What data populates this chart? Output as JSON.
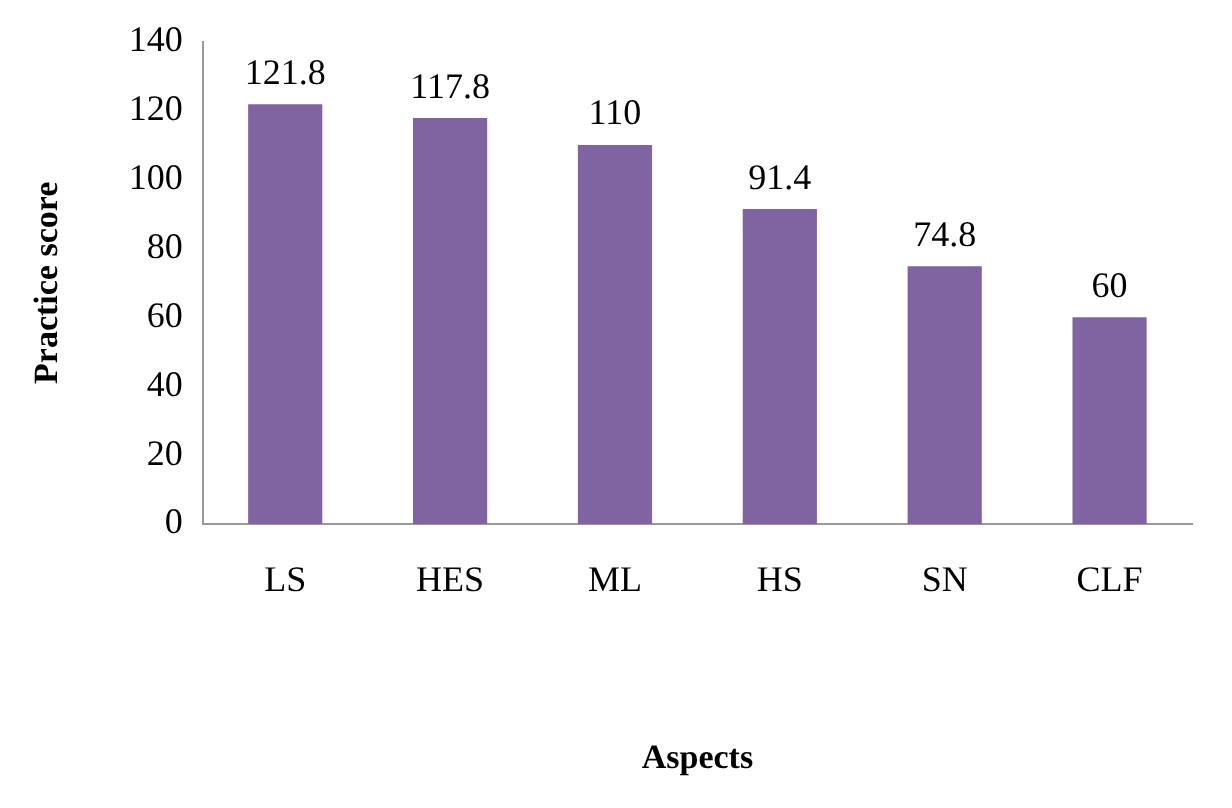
{
  "chart_data": {
    "type": "bar",
    "xlabel": "Aspects",
    "ylabel": "Practice score",
    "categories": [
      "LS",
      "HES",
      "ML",
      "HS",
      "SN",
      "CLF"
    ],
    "values": [
      121.8,
      117.8,
      110,
      91.4,
      74.8,
      60
    ],
    "color": "#8064a2",
    "ylim": [
      0,
      140
    ],
    "yticks": [
      0,
      20,
      40,
      60,
      80,
      100,
      120,
      140
    ],
    "grid": false,
    "legend": false,
    "data_labels": true
  }
}
